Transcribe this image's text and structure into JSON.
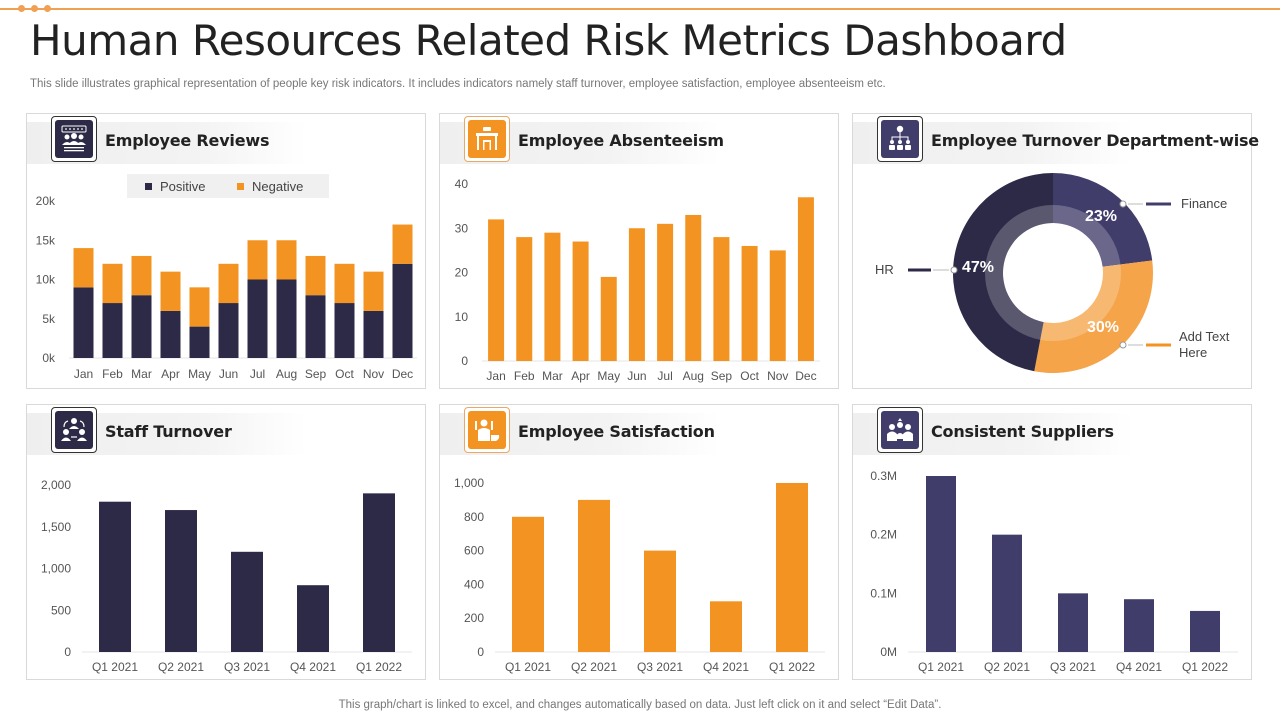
{
  "header": {
    "title": "Human Resources Related Risk Metrics Dashboard",
    "subtitle": "This slide illustrates graphical representation of people key risk indicators. It includes indicators namely staff turnover, employee satisfaction, employee absenteeism etc."
  },
  "footer": {
    "note": "This graph/chart is linked to excel,  and changes automatically based on data. Just left click on it and select “Edit Data”."
  },
  "colors": {
    "navy": "#2c2a47",
    "purple": "#403d6b",
    "orange": "#f39321",
    "light_orange": "#f5a44a",
    "accent_line": "#f0a050"
  },
  "panels": {
    "reviews": {
      "title": "Employee Reviews",
      "icon": "rating-group-icon"
    },
    "absenteeism": {
      "title": "Employee Absenteeism",
      "icon": "desk-chair-icon"
    },
    "turnover_dept": {
      "title": "Employee Turnover Department-wise",
      "icon": "org-chart-gear-icon"
    },
    "staff_turnover": {
      "title": "Staff Turnover",
      "icon": "people-exchange-icon"
    },
    "satisfaction": {
      "title": "Employee Satisfaction",
      "icon": "happy-employee-icon"
    },
    "suppliers": {
      "title": "Consistent  Suppliers",
      "icon": "supplier-group-icon"
    }
  },
  "chart_data": [
    {
      "id": "reviews",
      "type": "bar",
      "stacked": true,
      "title": "Employee Reviews",
      "categories": [
        "Jan",
        "Feb",
        "Mar",
        "Apr",
        "May",
        "Jun",
        "Jul",
        "Aug",
        "Sep",
        "Oct",
        "Nov",
        "Dec"
      ],
      "series": [
        {
          "name": "Positive",
          "color": "#2c2a47",
          "values": [
            9000,
            7000,
            8000,
            6000,
            4000,
            7000,
            10000,
            10000,
            8000,
            7000,
            6000,
            12000
          ]
        },
        {
          "name": "Negative",
          "color": "#f39321",
          "values": [
            5000,
            5000,
            5000,
            5000,
            5000,
            5000,
            5000,
            5000,
            5000,
            5000,
            5000,
            5000
          ]
        }
      ],
      "yticks": [
        "0k",
        "5k",
        "10k",
        "15k",
        "20k"
      ],
      "ylim": [
        0,
        20000
      ],
      "legend": "top",
      "grid": false
    },
    {
      "id": "absenteeism",
      "type": "bar",
      "title": "Employee Absenteeism",
      "categories": [
        "Jan",
        "Feb",
        "Mar",
        "Apr",
        "May",
        "Jun",
        "Jul",
        "Aug",
        "Sep",
        "Oct",
        "Nov",
        "Dec"
      ],
      "series": [
        {
          "name": "Absenteeism",
          "color": "#f39321",
          "values": [
            32,
            28,
            29,
            27,
            19,
            30,
            31,
            33,
            28,
            26,
            25,
            37
          ]
        }
      ],
      "yticks": [
        "0",
        "10",
        "20",
        "30",
        "40"
      ],
      "ylim": [
        0,
        40
      ],
      "grid": false
    },
    {
      "id": "turnover_dept",
      "type": "pie",
      "donut": true,
      "title": "Employee Turnover Department-wise",
      "slices": [
        {
          "label": "Finance",
          "value": 23,
          "display": "23%",
          "color": "#403d6b"
        },
        {
          "label": "Add Text Here",
          "value": 30,
          "display": "30%",
          "color": "#f5a44a"
        },
        {
          "label": "HR",
          "value": 47,
          "display": "47%",
          "color": "#2c2a47"
        }
      ]
    },
    {
      "id": "staff_turnover",
      "type": "bar",
      "title": "Staff Turnover",
      "categories": [
        "Q1 2021",
        "Q2 2021",
        "Q3 2021",
        "Q4 2021",
        "Q1 2022"
      ],
      "series": [
        {
          "name": "Staff Turnover",
          "color": "#2c2a47",
          "values": [
            1800,
            1700,
            1200,
            800,
            1900
          ]
        }
      ],
      "yticks": [
        "0",
        "500",
        "1,000",
        "1,500",
        "2,000"
      ],
      "ylim": [
        0,
        2000
      ],
      "grid": false
    },
    {
      "id": "satisfaction",
      "type": "bar",
      "title": "Employee Satisfaction",
      "categories": [
        "Q1 2021",
        "Q2 2021",
        "Q3 2021",
        "Q4 2021",
        "Q1 2022"
      ],
      "series": [
        {
          "name": "Employee Satisfaction",
          "color": "#f39321",
          "values": [
            800,
            900,
            600,
            300,
            1000
          ]
        }
      ],
      "yticks": [
        "0",
        "200",
        "400",
        "600",
        "800",
        "1,000"
      ],
      "ylim": [
        0,
        1000
      ],
      "grid": false
    },
    {
      "id": "suppliers",
      "type": "bar",
      "title": "Consistent  Suppliers",
      "categories": [
        "Q1 2021",
        "Q2 2021",
        "Q3 2021",
        "Q4 2021",
        "Q1 2022"
      ],
      "series": [
        {
          "name": "Consistent Suppliers",
          "color": "#403d6b",
          "values": [
            300000,
            200000,
            100000,
            90000,
            70000
          ]
        }
      ],
      "yticks": [
        "0M",
        "0.1M",
        "0.2M",
        "0.3M"
      ],
      "ylim": [
        0,
        300000
      ],
      "grid": false
    }
  ]
}
